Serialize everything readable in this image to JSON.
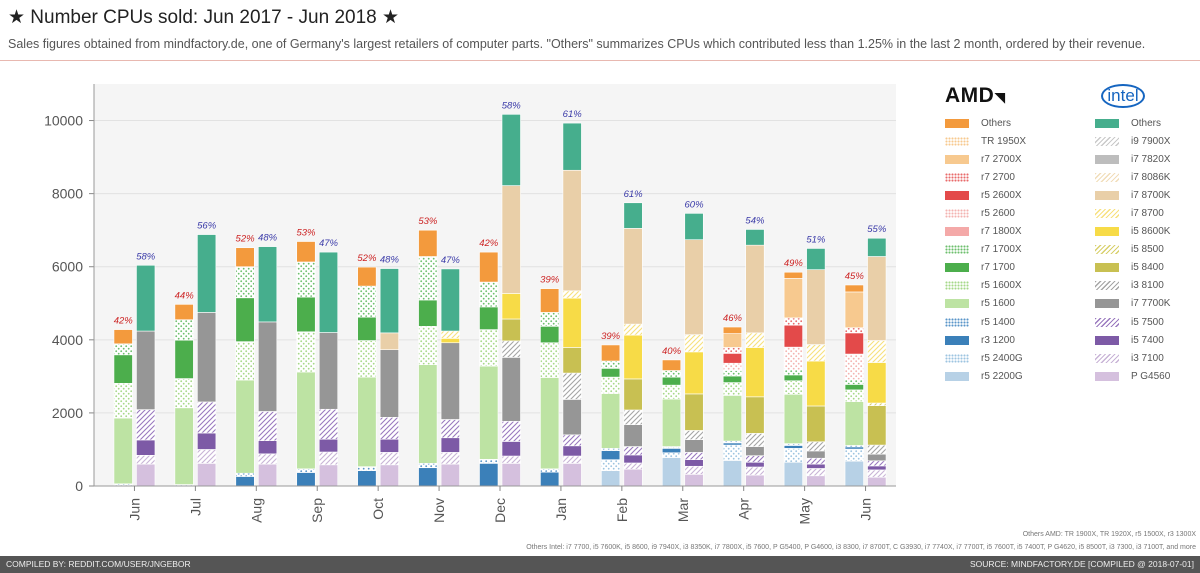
{
  "header": {
    "title": "★ Number CPUs sold: Jun 2017 - Jun 2018 ★",
    "subtitle": "Sales figures obtained from mindfactory.de, one of Germany's largest retailers of computer parts. \"Others\" summarizes CPUs which contributed less than 1.25% in the last 2 month, ordered by their revenue."
  },
  "footer": {
    "left": "COMPILED BY: REDDIT.COM/USER/JNGEBOR",
    "right": "SOURCE: MINDFACTORY.DE [COMPILED @ 2018-07-01]"
  },
  "notes": {
    "others_amd": "Others AMD: TR 1900X, TR 1920X, r5 1500X, r3 1300X",
    "others_intel": "Others Intel: i7 7700, i5 7600K, i5 8600, i9 7940X, i3 8350K, i7 7800X, i5 7600, P G5400, P G4600, i3 8300, i7 8700T, C G3930, i7 7740X, i7 7700T, i5 7600T, i5 7400T, P G4620, i5 8500T, i3 7300, i3 7100T, and more"
  },
  "legend": {
    "amd_brand": "AMD",
    "intel_brand": "intel"
  },
  "chart_data": {
    "type": "bar",
    "stacked": true,
    "grouped": true,
    "categories": [
      "Jun",
      "Jul",
      "Aug",
      "Sep",
      "Oct",
      "Nov",
      "Dec",
      "Jan",
      "Feb",
      "Mar",
      "Apr",
      "May",
      "Jun"
    ],
    "ylim": [
      0,
      11000
    ],
    "yticks": [
      0,
      2000,
      4000,
      6000,
      8000,
      10000
    ],
    "grid": true,
    "legend_position": "right",
    "amd": {
      "share_labels": [
        "42%",
        "44%",
        "52%",
        "53%",
        "52%",
        "53%",
        "42%",
        "39%",
        "39%",
        "40%",
        "46%",
        "49%",
        "45%"
      ],
      "share_label_color": "#cc2222",
      "series": [
        {
          "name": "r5 2200G",
          "color": "#b7d1e6",
          "pattern": "solid",
          "values": [
            0,
            0,
            0,
            0,
            0,
            0,
            0,
            0,
            420,
            780,
            700,
            650,
            680
          ]
        },
        {
          "name": "r5 2400G",
          "color": "#9ec4e0",
          "pattern": "dots",
          "values": [
            0,
            0,
            0,
            0,
            0,
            0,
            0,
            0,
            300,
            130,
            420,
            380,
            330
          ]
        },
        {
          "name": "r3 1200",
          "color": "#3b80b9",
          "pattern": "solid",
          "values": [
            0,
            0,
            260,
            370,
            420,
            500,
            620,
            380,
            250,
            120,
            60,
            80,
            60
          ]
        },
        {
          "name": "r5 1400",
          "color": "#5a95c8",
          "pattern": "dots",
          "values": [
            60,
            40,
            90,
            100,
            110,
            120,
            110,
            90,
            60,
            50,
            50,
            50,
            40
          ]
        },
        {
          "name": "r5 1600",
          "color": "#bde3a3",
          "pattern": "solid",
          "values": [
            1800,
            2100,
            2550,
            2650,
            2450,
            2700,
            2550,
            2500,
            1500,
            1300,
            1250,
            1350,
            1200
          ]
        },
        {
          "name": "r5 1600X",
          "color": "#a6d889",
          "pattern": "dots",
          "values": [
            950,
            800,
            1050,
            1100,
            1000,
            1050,
            1000,
            950,
            450,
            380,
            350,
            370,
            320
          ]
        },
        {
          "name": "r7 1700",
          "color": "#4cae4c",
          "pattern": "solid",
          "values": [
            780,
            1050,
            1200,
            950,
            640,
            720,
            620,
            450,
            240,
            220,
            180,
            160,
            150
          ]
        },
        {
          "name": "r7 1700X",
          "color": "#6dbf6d",
          "pattern": "dots",
          "values": [
            300,
            560,
            850,
            960,
            850,
            1190,
            680,
            380,
            200,
            180,
            150,
            140,
            130
          ]
        },
        {
          "name": "r7 1800X",
          "color": "#f4a9a8",
          "pattern": "solid",
          "values": [
            0,
            0,
            0,
            0,
            0,
            0,
            0,
            0,
            0,
            0,
            0,
            0,
            0
          ]
        },
        {
          "name": "r5 2600",
          "color": "#f3b3b0",
          "pattern": "dots",
          "values": [
            0,
            0,
            0,
            0,
            0,
            0,
            0,
            0,
            0,
            0,
            200,
            620,
            700
          ]
        },
        {
          "name": "r5 2600X",
          "color": "#e34a4a",
          "pattern": "solid",
          "values": [
            0,
            0,
            0,
            0,
            0,
            0,
            0,
            0,
            0,
            0,
            270,
            600,
            580
          ]
        },
        {
          "name": "r7 2700",
          "color": "#e86b6b",
          "pattern": "dots",
          "values": [
            0,
            0,
            0,
            0,
            0,
            0,
            0,
            0,
            0,
            0,
            160,
            200,
            140
          ]
        },
        {
          "name": "r7 2700X",
          "color": "#f7c98f",
          "pattern": "solid",
          "values": [
            0,
            0,
            0,
            0,
            0,
            0,
            0,
            0,
            0,
            0,
            380,
            1080,
            980
          ]
        },
        {
          "name": "TR 1950X",
          "color": "#f7c98f",
          "pattern": "dots",
          "values": [
            0,
            0,
            0,
            0,
            0,
            0,
            0,
            0,
            0,
            0,
            0,
            0,
            0
          ]
        },
        {
          "name": "Others",
          "color": "#f39a3d",
          "pattern": "solid",
          "values": [
            390,
            420,
            520,
            560,
            520,
            720,
            820,
            650,
            440,
            290,
            180,
            170,
            190
          ]
        }
      ]
    },
    "intel": {
      "share_labels": [
        "58%",
        "56%",
        "48%",
        "47%",
        "48%",
        "47%",
        "58%",
        "61%",
        "61%",
        "60%",
        "54%",
        "51%",
        "55%"
      ],
      "share_label_color": "#3a3aa8",
      "series": [
        {
          "name": "P G4560",
          "color": "#d5c0de",
          "pattern": "solid",
          "values": [
            600,
            620,
            600,
            580,
            580,
            600,
            620,
            620,
            460,
            320,
            300,
            280,
            240
          ]
        },
        {
          "name": "i3 7100",
          "color": "#c8b3d6",
          "pattern": "hatch",
          "values": [
            240,
            380,
            280,
            350,
            340,
            320,
            200,
            200,
            170,
            220,
            220,
            200,
            200
          ]
        },
        {
          "name": "i5 7400",
          "color": "#7d5aa6",
          "pattern": "solid",
          "values": [
            420,
            450,
            360,
            350,
            360,
            400,
            400,
            280,
            220,
            180,
            130,
            120,
            110
          ]
        },
        {
          "name": "i5 7500",
          "color": "#9a79bf",
          "pattern": "hatch",
          "values": [
            830,
            850,
            800,
            820,
            600,
            500,
            550,
            300,
            230,
            200,
            180,
            160,
            140
          ]
        },
        {
          "name": "i7 7700K",
          "color": "#969696",
          "pattern": "solid",
          "values": [
            2150,
            2450,
            2450,
            2100,
            1850,
            2100,
            1750,
            970,
            600,
            350,
            250,
            200,
            180
          ]
        },
        {
          "name": "i3 8100",
          "color": "#a5a5a5",
          "pattern": "hatch",
          "values": [
            0,
            0,
            0,
            0,
            0,
            0,
            450,
            720,
            400,
            250,
            360,
            250,
            250
          ]
        },
        {
          "name": "i5 8400",
          "color": "#c8c052",
          "pattern": "solid",
          "values": [
            0,
            0,
            0,
            0,
            0,
            0,
            600,
            700,
            850,
            1000,
            1000,
            980,
            1080
          ]
        },
        {
          "name": "i5 8500",
          "color": "#d8d06c",
          "pattern": "hatch",
          "values": [
            0,
            0,
            0,
            0,
            0,
            0,
            0,
            0,
            0,
            0,
            0,
            0,
            70
          ]
        },
        {
          "name": "i5 8600K",
          "color": "#f7db47",
          "pattern": "solid",
          "values": [
            0,
            0,
            0,
            0,
            0,
            120,
            700,
            1350,
            1200,
            1150,
            1350,
            1230,
            1110
          ]
        },
        {
          "name": "i7 8700",
          "color": "#f7e07d",
          "pattern": "hatch",
          "values": [
            0,
            0,
            0,
            0,
            0,
            200,
            0,
            200,
            300,
            470,
            400,
            450,
            600
          ]
        },
        {
          "name": "i7 8700K",
          "color": "#e9cfa8",
          "pattern": "solid",
          "values": [
            0,
            0,
            0,
            0,
            460,
            0,
            2950,
            3300,
            2620,
            2600,
            2400,
            2050,
            2300
          ]
        },
        {
          "name": "i7 8086K",
          "color": "#f1ddb9",
          "pattern": "hatch",
          "values": [
            0,
            0,
            0,
            0,
            0,
            0,
            0,
            0,
            0,
            0,
            0,
            0,
            0
          ]
        },
        {
          "name": "i7 7820X",
          "color": "#bdbdbd",
          "pattern": "solid",
          "values": [
            0,
            0,
            0,
            0,
            0,
            0,
            0,
            0,
            0,
            0,
            0,
            0,
            0
          ]
        },
        {
          "name": "i9 7900X",
          "color": "#c9c9c9",
          "pattern": "hatch",
          "values": [
            0,
            0,
            0,
            0,
            0,
            0,
            0,
            0,
            0,
            0,
            0,
            0,
            0
          ]
        },
        {
          "name": "Others",
          "color": "#46ae8d",
          "pattern": "solid",
          "values": [
            1800,
            2130,
            2060,
            2200,
            1760,
            1700,
            1950,
            1290,
            700,
            720,
            430,
            580,
            500
          ]
        }
      ]
    }
  }
}
